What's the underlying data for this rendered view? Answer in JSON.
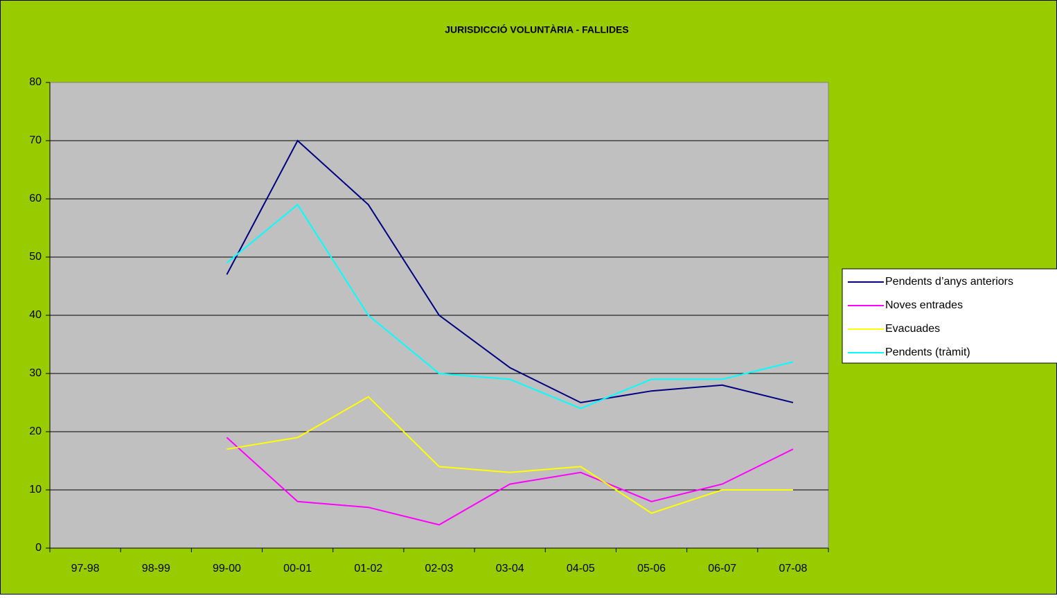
{
  "chart_data": {
    "type": "line",
    "title": "JURISDICCIÓ VOLUNTÀRIA - FALLIDES",
    "categories": [
      "97-98",
      "98-99",
      "99-00",
      "00-01",
      "01-02",
      "02-03",
      "03-04",
      "04-05",
      "05-06",
      "06-07",
      "07-08"
    ],
    "series": [
      {
        "name": "Pendents d’anys anteriors",
        "color": "#000080",
        "values": [
          null,
          null,
          47,
          70,
          59,
          40,
          31,
          25,
          27,
          28,
          25
        ]
      },
      {
        "name": "Noves entrades",
        "color": "#ff00ff",
        "values": [
          null,
          null,
          19,
          8,
          7,
          4,
          11,
          13,
          8,
          11,
          17
        ]
      },
      {
        "name": "Evacuades",
        "color": "#ffff00",
        "values": [
          null,
          null,
          17,
          19,
          26,
          14,
          13,
          14,
          6,
          10,
          10
        ]
      },
      {
        "name": "Pendents (tràmit)",
        "color": "#00ffff",
        "values": [
          null,
          null,
          49,
          59,
          40,
          30,
          29,
          24,
          29,
          29,
          32
        ]
      }
    ],
    "ylim": [
      0,
      80
    ],
    "yticks": [
      0,
      10,
      20,
      30,
      40,
      50,
      60,
      70,
      80
    ],
    "grid": true,
    "legend": "right"
  }
}
